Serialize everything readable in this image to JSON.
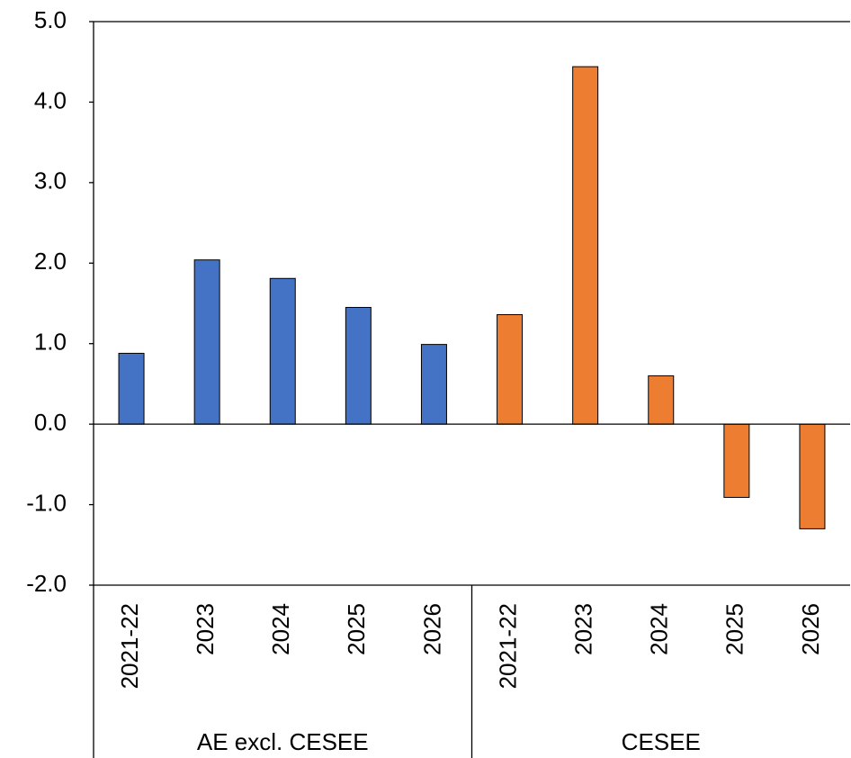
{
  "chart_data": {
    "type": "bar",
    "ylim": [
      -2,
      5
    ],
    "yticks": [
      {
        "value": -2,
        "label": "-2.0"
      },
      {
        "value": -1,
        "label": "-1.0"
      },
      {
        "value": 0,
        "label": "0.0"
      },
      {
        "value": 1,
        "label": "1.0"
      },
      {
        "value": 2,
        "label": "2.0"
      },
      {
        "value": 3,
        "label": "3.0"
      },
      {
        "value": 4,
        "label": "4.0"
      },
      {
        "value": 5,
        "label": "5.0"
      }
    ],
    "series": [
      {
        "name": "AE excl. CESEE",
        "color": "#4472c4",
        "categories": [
          "2021-22",
          "2023",
          "2024",
          "2025",
          "2026"
        ],
        "values": [
          0.88,
          2.04,
          1.81,
          1.45,
          0.99
        ]
      },
      {
        "name": "CESEE",
        "color": "#ed7d31",
        "categories": [
          "2021-22",
          "2023",
          "2024",
          "2025",
          "2026"
        ],
        "values": [
          1.36,
          4.44,
          0.6,
          -0.91,
          -1.3
        ]
      }
    ]
  }
}
